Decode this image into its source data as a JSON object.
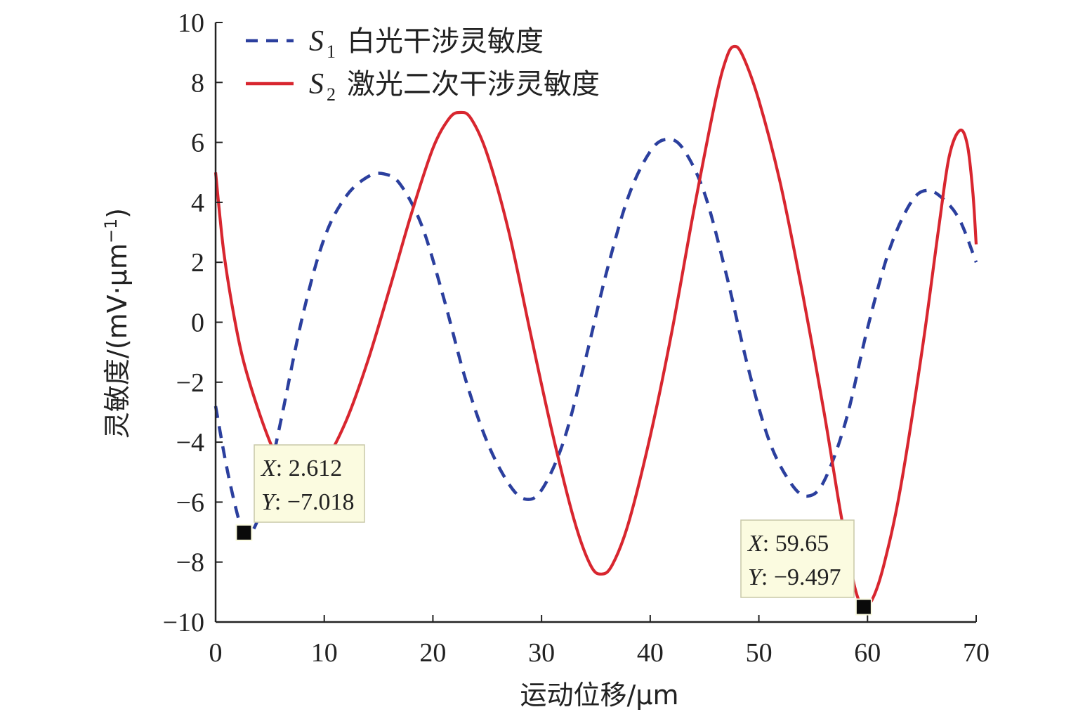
{
  "chart_data": {
    "type": "line",
    "xlabel": "运动位移/μm",
    "ylabel": "灵敏度/(mV·μm",
    "ylabel_sup": "−1",
    "ylabel_close": ")",
    "xlim": [
      0,
      70
    ],
    "ylim": [
      -10,
      10
    ],
    "x_ticks": [
      0,
      10,
      20,
      30,
      40,
      50,
      60,
      70
    ],
    "y_ticks": [
      -10,
      -8,
      -6,
      -4,
      -2,
      0,
      2,
      4,
      6,
      8,
      10
    ],
    "x_tick_labels": [
      "0",
      "10",
      "20",
      "30",
      "40",
      "50",
      "60",
      "70"
    ],
    "y_tick_labels": [
      "−10",
      "−8",
      "−6",
      "−4",
      "−2",
      "0",
      "2",
      "4",
      "6",
      "8",
      "10"
    ],
    "grid": false,
    "legend_position": "top-left",
    "series": [
      {
        "name": "白光干涉灵敏度",
        "symbol": "S",
        "subscript": "1",
        "color": "#2b3f9e",
        "style": "dashed",
        "points": [
          [
            0,
            -2.8
          ],
          [
            1,
            -4.8
          ],
          [
            2,
            -6.4
          ],
          [
            2.612,
            -7.018
          ],
          [
            3.5,
            -6.9
          ],
          [
            4.5,
            -5.8
          ],
          [
            6,
            -3.3
          ],
          [
            8,
            0.2
          ],
          [
            10,
            2.8
          ],
          [
            12,
            4.2
          ],
          [
            14,
            4.85
          ],
          [
            15.5,
            4.95
          ],
          [
            17,
            4.6
          ],
          [
            19,
            3.2
          ],
          [
            21,
            0.8
          ],
          [
            23,
            -1.9
          ],
          [
            25,
            -4.0
          ],
          [
            27,
            -5.4
          ],
          [
            28.5,
            -5.9
          ],
          [
            30,
            -5.6
          ],
          [
            32,
            -4.0
          ],
          [
            34,
            -1.3
          ],
          [
            36,
            1.7
          ],
          [
            38,
            4.2
          ],
          [
            40,
            5.7
          ],
          [
            41.5,
            6.1
          ],
          [
            43,
            5.8
          ],
          [
            45,
            4.3
          ],
          [
            47,
            1.6
          ],
          [
            49,
            -1.5
          ],
          [
            51,
            -4.0
          ],
          [
            53,
            -5.4
          ],
          [
            54.5,
            -5.8
          ],
          [
            56,
            -5.3
          ],
          [
            58,
            -3.3
          ],
          [
            60,
            -0.2
          ],
          [
            62,
            2.4
          ],
          [
            64,
            4.0
          ],
          [
            65.5,
            4.4
          ],
          [
            67,
            4.1
          ],
          [
            68.5,
            3.4
          ],
          [
            70,
            2.0
          ]
        ]
      },
      {
        "name": "激光二次干涉灵敏度",
        "symbol": "S",
        "subscript": "2",
        "color": "#d8262f",
        "style": "solid",
        "points": [
          [
            0,
            5.0
          ],
          [
            0.7,
            2.5
          ],
          [
            1.5,
            0.6
          ],
          [
            2.5,
            -1.2
          ],
          [
            4,
            -3.0
          ],
          [
            5.5,
            -4.4
          ],
          [
            7,
            -5.2
          ],
          [
            8.5,
            -5.2
          ],
          [
            10,
            -4.7
          ],
          [
            12,
            -3.3
          ],
          [
            14,
            -1.3
          ],
          [
            16,
            1.1
          ],
          [
            18,
            3.6
          ],
          [
            20,
            5.8
          ],
          [
            21.5,
            6.8
          ],
          [
            22.5,
            7.0
          ],
          [
            23.5,
            6.8
          ],
          [
            25,
            5.6
          ],
          [
            27,
            3.0
          ],
          [
            29,
            -0.4
          ],
          [
            31,
            -3.7
          ],
          [
            33,
            -6.6
          ],
          [
            34.5,
            -8.1
          ],
          [
            35.5,
            -8.4
          ],
          [
            36.5,
            -8.1
          ],
          [
            38,
            -6.7
          ],
          [
            40,
            -3.8
          ],
          [
            42,
            -0.3
          ],
          [
            44,
            3.7
          ],
          [
            46,
            7.4
          ],
          [
            47,
            8.8
          ],
          [
            47.7,
            9.2
          ],
          [
            48.5,
            8.9
          ],
          [
            50,
            7.4
          ],
          [
            52,
            4.6
          ],
          [
            54,
            1.0
          ],
          [
            56,
            -3.0
          ],
          [
            57.5,
            -6.3
          ],
          [
            58.8,
            -8.8
          ],
          [
            59.65,
            -9.497
          ],
          [
            60.5,
            -9.2
          ],
          [
            61.5,
            -8.1
          ],
          [
            63,
            -5.6
          ],
          [
            65,
            -1.0
          ],
          [
            66.5,
            3.0
          ],
          [
            67.5,
            5.5
          ],
          [
            68.5,
            6.4
          ],
          [
            69.2,
            5.9
          ],
          [
            69.7,
            4.3
          ],
          [
            70,
            2.6
          ]
        ]
      }
    ],
    "annotations": [
      {
        "x_label": "X",
        "y_label": "Y",
        "x_text": ": 2.612",
        "y_text": ": −7.018",
        "x": 2.612,
        "y": -7.018
      },
      {
        "x_label": "X",
        "y_label": "Y",
        "x_text": ": 59.65",
        "y_text": ": −9.497",
        "x": 59.65,
        "y": -9.497
      }
    ]
  }
}
